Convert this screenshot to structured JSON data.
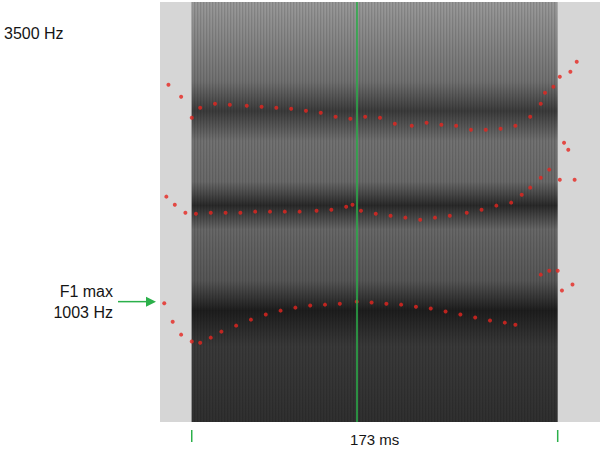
{
  "chart_data": {
    "type": "scatter",
    "xlim": [
      -15,
      193
    ],
    "ylim": [
      0,
      3500
    ],
    "y_max_label": "3500 Hz",
    "tick_labels": false,
    "grid": false,
    "f1_max": {
      "label": "F1 max",
      "value": 1003,
      "value_label": "1003 Hz",
      "x": 78
    },
    "vowel": {
      "start": 0,
      "end": 173,
      "label": "173 ms"
    },
    "series": [
      {
        "color": "#e6261f",
        "marker": "circle",
        "x": [
          -13,
          -9,
          -5,
          0,
          4,
          9,
          14,
          21,
          28,
          35,
          42,
          49,
          56,
          63,
          70,
          78,
          85,
          92,
          99,
          106,
          113,
          120,
          127,
          134,
          141,
          148,
          153,
          165,
          169,
          173,
          175,
          180
        ],
        "values": [
          990,
          836,
          728,
          670,
          661,
          703,
          753,
          803,
          853,
          895,
          928,
          953,
          970,
          978,
          986,
          1003,
          995,
          986,
          978,
          961,
          945,
          920,
          895,
          870,
          845,
          828,
          811,
          1228,
          1261,
          1261,
          1095,
          1145
        ]
      },
      {
        "color": "#e6261f",
        "marker": "circle",
        "x": [
          -12,
          -8,
          -3,
          2,
          9,
          16,
          23,
          30,
          37,
          44,
          51,
          59,
          66,
          73,
          76,
          80,
          87,
          94,
          101,
          108,
          115,
          122,
          130,
          137,
          144,
          151,
          156,
          160,
          165,
          169,
          174,
          181
        ],
        "values": [
          1878,
          1811,
          1744,
          1736,
          1744,
          1744,
          1744,
          1753,
          1753,
          1753,
          1753,
          1761,
          1769,
          1794,
          1811,
          1761,
          1736,
          1719,
          1703,
          1686,
          1703,
          1719,
          1744,
          1769,
          1803,
          1828,
          1894,
          1953,
          2036,
          2103,
          2019,
          2019
        ]
      },
      {
        "color": "#e6261f",
        "marker": "circle",
        "x": [
          -11,
          -5,
          0,
          4,
          11,
          18,
          26,
          33,
          40,
          47,
          54,
          61,
          68,
          75,
          82,
          89,
          96,
          104,
          111,
          118,
          125,
          132,
          139,
          146,
          153,
          160,
          165,
          167,
          171,
          174,
          179,
          182,
          176,
          178
        ],
        "values": [
          2811,
          2711,
          2536,
          2619,
          2652,
          2644,
          2636,
          2627,
          2619,
          2611,
          2594,
          2577,
          2544,
          2527,
          2544,
          2536,
          2486,
          2469,
          2494,
          2477,
          2469,
          2436,
          2436,
          2444,
          2469,
          2544,
          2652,
          2744,
          2794,
          2877,
          2919,
          3002,
          2327,
          2269
        ]
      }
    ]
  }
}
